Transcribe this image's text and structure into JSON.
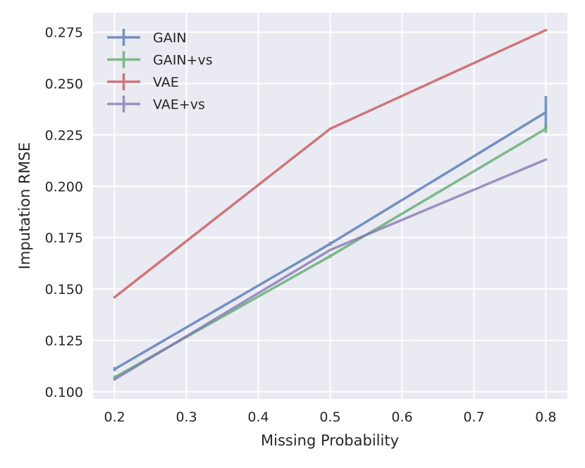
{
  "chart_data": {
    "type": "line",
    "title": "",
    "xlabel": "Missing Probability",
    "ylabel": "Imputation RMSE",
    "x": [
      0.2,
      0.5,
      0.8
    ],
    "xlim": [
      0.17,
      0.83
    ],
    "ylim": [
      0.0965,
      0.2845
    ],
    "xticks": [
      0.2,
      0.3,
      0.4,
      0.5,
      0.6,
      0.7,
      0.8
    ],
    "xtick_labels": [
      "0.2",
      "0.3",
      "0.4",
      "0.5",
      "0.6",
      "0.7",
      "0.8"
    ],
    "yticks": [
      0.1,
      0.125,
      0.15,
      0.175,
      0.2,
      0.225,
      0.25,
      0.275
    ],
    "ytick_labels": [
      "0.100",
      "0.125",
      "0.150",
      "0.175",
      "0.200",
      "0.225",
      "0.250",
      "0.275"
    ],
    "grid": true,
    "legend_position": "top-left",
    "series": [
      {
        "name": "GAIN",
        "color": "#4c72b0",
        "values": [
          0.111,
          0.172,
          0.236
        ],
        "errors": [
          0.001,
          0.001,
          0.008
        ]
      },
      {
        "name": "GAIN+vs",
        "color": "#55a868",
        "values": [
          0.107,
          0.166,
          0.228
        ],
        "errors": [
          0.001,
          0.001,
          0.002
        ]
      },
      {
        "name": "VAE",
        "color": "#c44e52",
        "values": [
          0.146,
          0.228,
          0.276
        ],
        "errors": [
          0.0005,
          0.0005,
          0.0005
        ]
      },
      {
        "name": "VAE+vs",
        "color": "#8172b2",
        "values": [
          0.106,
          0.169,
          0.213
        ],
        "errors": [
          0.0005,
          0.0005,
          0.0005
        ]
      }
    ]
  }
}
